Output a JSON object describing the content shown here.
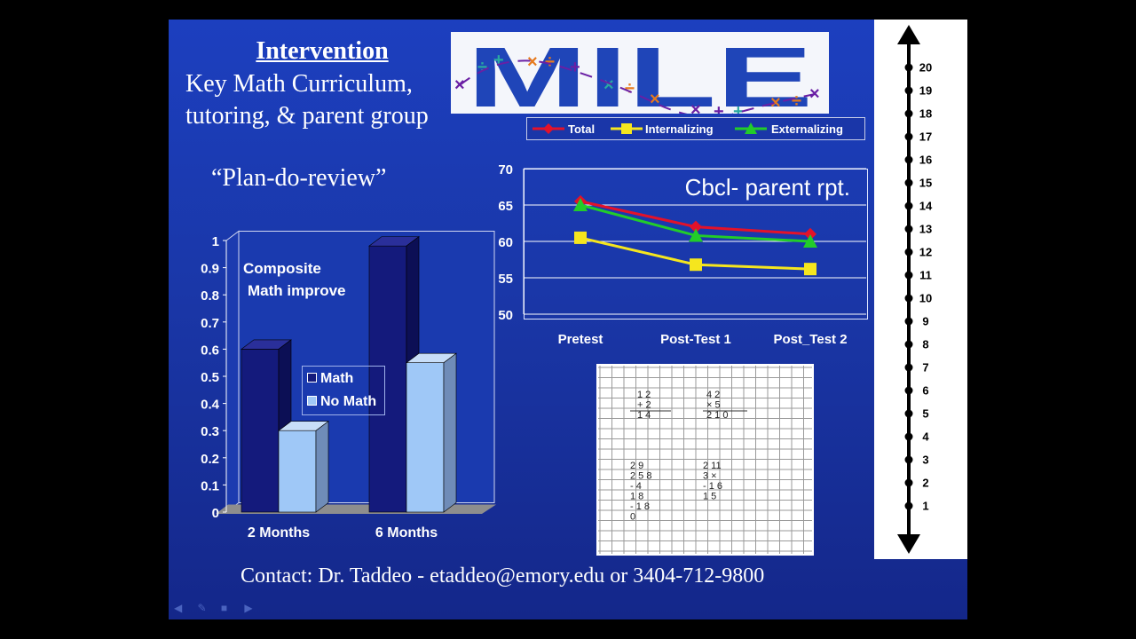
{
  "slide": {
    "heading": "Intervention",
    "subtitle_line1": "Key Math Curriculum,",
    "subtitle_line2": "tutoring, & parent group",
    "plan": "“Plan-do-review”",
    "contact": "Contact:  Dr. Taddeo -  etaddeo@emory.edu  or 3404-712-9800",
    "logo_text": "MILE",
    "bar_chart": {
      "annotation_line1": "Composite",
      "annotation_line2": "Math improve",
      "legend": [
        "Math",
        "No Math"
      ]
    },
    "line_chart": {
      "title": "Cbcl- parent rpt.",
      "legend": [
        "Total",
        "Internalizing",
        "Externalizing"
      ]
    },
    "number_line_labels": [
      "20",
      "19",
      "18",
      "17",
      "16",
      "15",
      "14",
      "13",
      "12",
      "11",
      "10",
      "9",
      "8",
      "7",
      "6",
      "5",
      "4",
      "3",
      "2",
      "1"
    ]
  },
  "chart_data": [
    {
      "type": "bar",
      "categories": [
        "2 Months",
        "6 Months"
      ],
      "series": [
        {
          "name": "Math",
          "values": [
            0.6,
            0.98
          ]
        },
        {
          "name": "No Math",
          "values": [
            0.3,
            0.55
          ]
        }
      ],
      "ylim": [
        0,
        1
      ],
      "yticks": [
        "0",
        "0.1",
        "0.2",
        "0.3",
        "0.4",
        "0.5",
        "0.6",
        "0.7",
        "0.8",
        "0.9",
        "1"
      ],
      "colors": {
        "Math": "#141a7c",
        "No Math": "#9fc8f7"
      }
    },
    {
      "type": "line",
      "title": "Cbcl- parent rpt.",
      "categories": [
        "Pretest",
        "Post-Test 1",
        "Post_Test 2"
      ],
      "series": [
        {
          "name": "Total",
          "values": [
            65.5,
            62,
            61
          ],
          "color": "#e3122a"
        },
        {
          "name": "Internalizing",
          "values": [
            60.5,
            56.8,
            56.2
          ],
          "color": "#f5e61e"
        },
        {
          "name": "Externalizing",
          "values": [
            65,
            60.8,
            60
          ],
          "color": "#22cc2a"
        }
      ],
      "ylim": [
        50,
        70
      ],
      "yticks": [
        "50",
        "55",
        "60",
        "65",
        "70"
      ]
    }
  ],
  "worksheet": {
    "problem1": [
      "1 2",
      "+ 2",
      "1 4"
    ],
    "problem2": [
      "4 2",
      "× 5",
      "2 1 0"
    ],
    "problem3": [
      "2 9",
      "2 5 8",
      "- 4",
      "1 8",
      "- 1 8",
      "0"
    ],
    "problem4": [
      "2 11",
      "3 ×",
      "- 1 6",
      "1 5"
    ]
  }
}
